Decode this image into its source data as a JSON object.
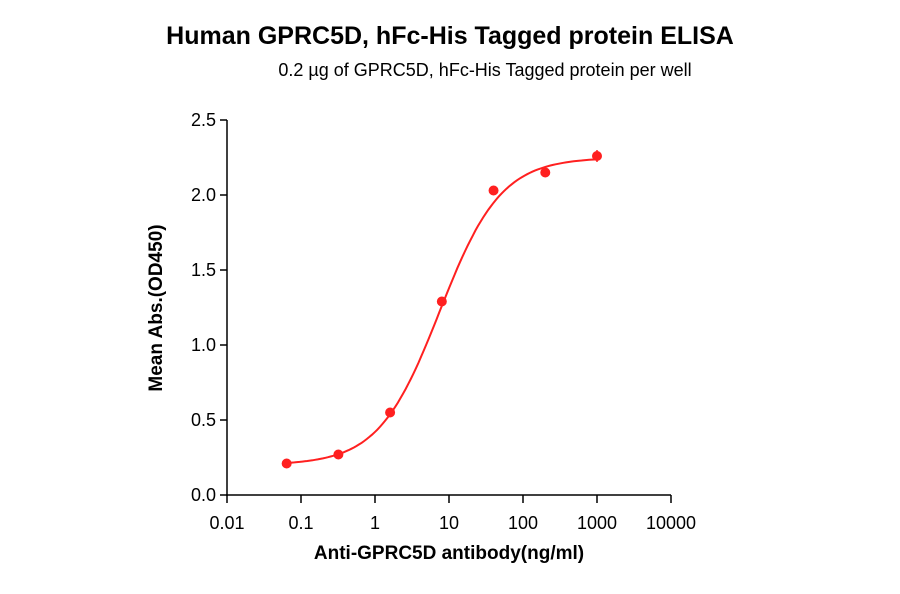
{
  "chart_data": {
    "type": "scatter",
    "title": "Human GPRC5D, hFc-His Tagged protein ELISA",
    "subtitle": "0.2 µg of GPRC5D, hFc-His Tagged protein per well",
    "xlabel": "Anti-GPRC5D antibody(ng/ml)",
    "ylabel": "Mean Abs.(OD450)",
    "xscale": "log",
    "xlim": [
      0.01,
      10000
    ],
    "ylim": [
      0.0,
      2.5
    ],
    "xticks": [
      "0.01",
      "0.1",
      "1",
      "10",
      "100",
      "1000",
      "10000"
    ],
    "xtick_values": [
      0.01,
      0.1,
      1,
      10,
      100,
      1000,
      10000
    ],
    "yticks": [
      "0.0",
      "0.5",
      "1.0",
      "1.5",
      "2.0",
      "2.5"
    ],
    "ytick_values": [
      0.0,
      0.5,
      1.0,
      1.5,
      2.0,
      2.5
    ],
    "grid": false,
    "legend": null,
    "color": "#ff2020",
    "series": [
      {
        "name": "Anti-GPRC5D antibody",
        "x": [
          0.064,
          0.32,
          1.6,
          8,
          40,
          200,
          1000
        ],
        "y": [
          0.21,
          0.27,
          0.55,
          1.29,
          2.03,
          2.15,
          2.26
        ],
        "error": [
          0.01,
          0.01,
          0.01,
          0.02,
          0.01,
          0.01,
          0.04
        ]
      }
    ],
    "fit": {
      "type": "4PL sigmoidal",
      "bottom": 0.2,
      "top": 2.25,
      "ec50": 7.5,
      "hill": 1.05
    }
  }
}
